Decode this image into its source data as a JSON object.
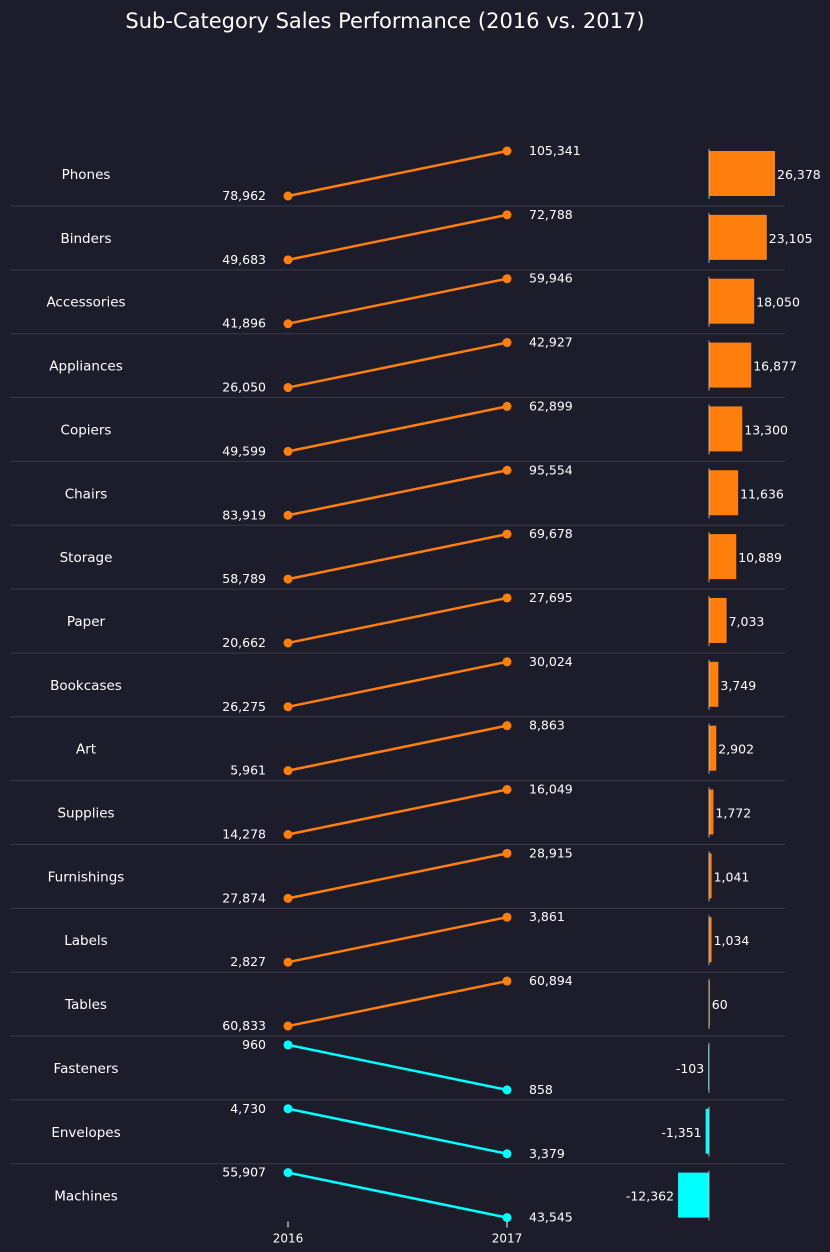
{
  "chart_data": {
    "type": "slope",
    "title": "Sub-Category Sales Performance (2016 vs. 2017)",
    "x": [
      "2016",
      "2017"
    ],
    "categories": [
      "Phones",
      "Binders",
      "Accessories",
      "Appliances",
      "Copiers",
      "Chairs",
      "Storage",
      "Paper",
      "Bookcases",
      "Art",
      "Supplies",
      "Furnishings",
      "Labels",
      "Tables",
      "Fasteners",
      "Envelopes",
      "Machines"
    ],
    "series": [
      {
        "values": [
          78962,
          49683,
          41896,
          26050,
          49599,
          83919,
          58789,
          20662,
          26275,
          5961,
          14278,
          27874,
          2827,
          60833,
          960,
          4730,
          55907
        ]
      },
      {
        "values": [
          105341,
          72788,
          59946,
          42927,
          62899,
          95554,
          69678,
          27695,
          30024,
          8863,
          16049,
          28915,
          3861,
          60894,
          858,
          3379,
          43545
        ]
      }
    ],
    "differences": [
      26378,
      23105,
      18050,
      16877,
      13300,
      11636,
      10889,
      7033,
      3749,
      2902,
      1772,
      1041,
      1034,
      60,
      -103,
      -1351,
      -12362
    ],
    "value_labels_2016": [
      "78,962",
      "49,683",
      "41,896",
      "26,050",
      "49,599",
      "83,919",
      "58,789",
      "20,662",
      "26,275",
      "5,961",
      "14,278",
      "27,874",
      "2,827",
      "60,833",
      "960",
      "4,730",
      "55,907"
    ],
    "value_labels_2017": [
      "105,341",
      "72,788",
      "59,946",
      "42,927",
      "62,899",
      "95,554",
      "69,678",
      "27,695",
      "30,024",
      "8,863",
      "16,049",
      "28,915",
      "3,861",
      "60,894",
      "858",
      "3,379",
      "43,545"
    ],
    "difference_labels": [
      "26,378",
      "23,105",
      "18,050",
      "16,877",
      "13,300",
      "11,636",
      "10,889",
      "7,033",
      "3,749",
      "2,902",
      "1,772",
      "1,041",
      "1,034",
      "60",
      "-103",
      "-1,351",
      "-12,362"
    ],
    "colors": {
      "increase": "#ff7f0e",
      "decrease": "#00ffff",
      "background": "#1c1c2a",
      "text": "#ffffff",
      "divider": "#3a3a48"
    },
    "grid": false,
    "legend": "none"
  }
}
